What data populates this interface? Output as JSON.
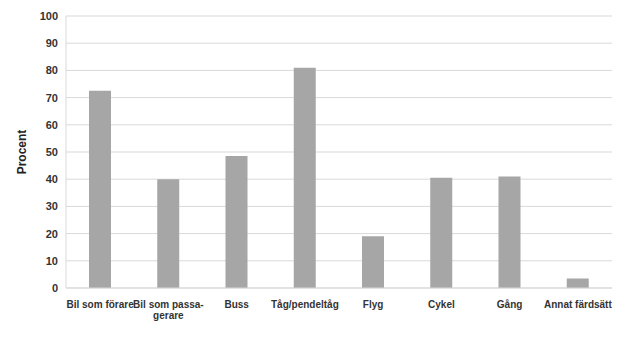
{
  "chart_data": {
    "type": "bar",
    "y_label": "Procent",
    "categories": [
      "Bil som förare",
      "Bil som passa-\ngerare",
      "Buss",
      "Tåg/pendeltåg",
      "Flyg",
      "Cykel",
      "Gång",
      "Annat färdsätt"
    ],
    "values": [
      72.5,
      40,
      48.5,
      81,
      19,
      40.5,
      41,
      3.5
    ],
    "color": "#a6a6a6",
    "ylim": [
      0,
      100
    ],
    "yticks": [
      0,
      10,
      20,
      30,
      40,
      50,
      60,
      70,
      80,
      90,
      100
    ],
    "grid": true
  }
}
